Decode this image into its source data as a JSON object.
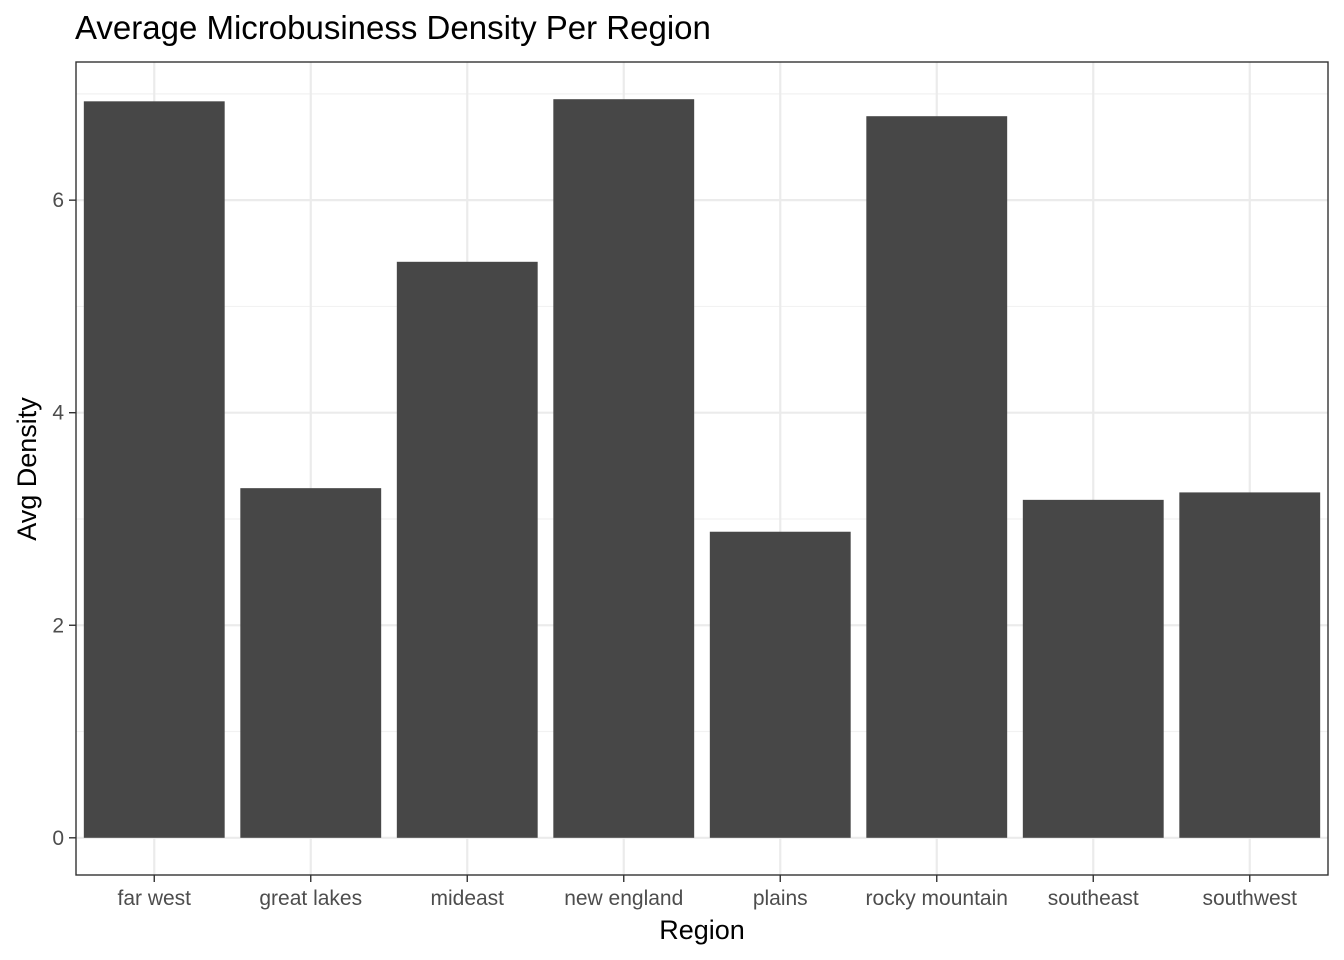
{
  "chart_data": {
    "type": "bar",
    "title": "Average Microbusiness Density Per Region",
    "xlabel": "Region",
    "ylabel": "Avg Density",
    "categories": [
      "far west",
      "great lakes",
      "mideast",
      "new england",
      "plains",
      "rocky mountain",
      "southeast",
      "southwest"
    ],
    "values": [
      6.93,
      3.29,
      5.42,
      6.95,
      2.88,
      6.79,
      3.18,
      3.25
    ],
    "ylim": [
      -0.35,
      7.3
    ],
    "yticks": [
      0,
      2,
      4,
      6
    ],
    "ytick_labels": [
      "0",
      "2",
      "4",
      "6"
    ],
    "grid": true,
    "legend": "none",
    "colors": {
      "bar": "#474747",
      "panel_border": "#333333",
      "grid_major": "#ebebeb",
      "grid_minor": "#f2f2f2",
      "tick_text": "#4d4d4d",
      "background": "#ffffff"
    }
  }
}
